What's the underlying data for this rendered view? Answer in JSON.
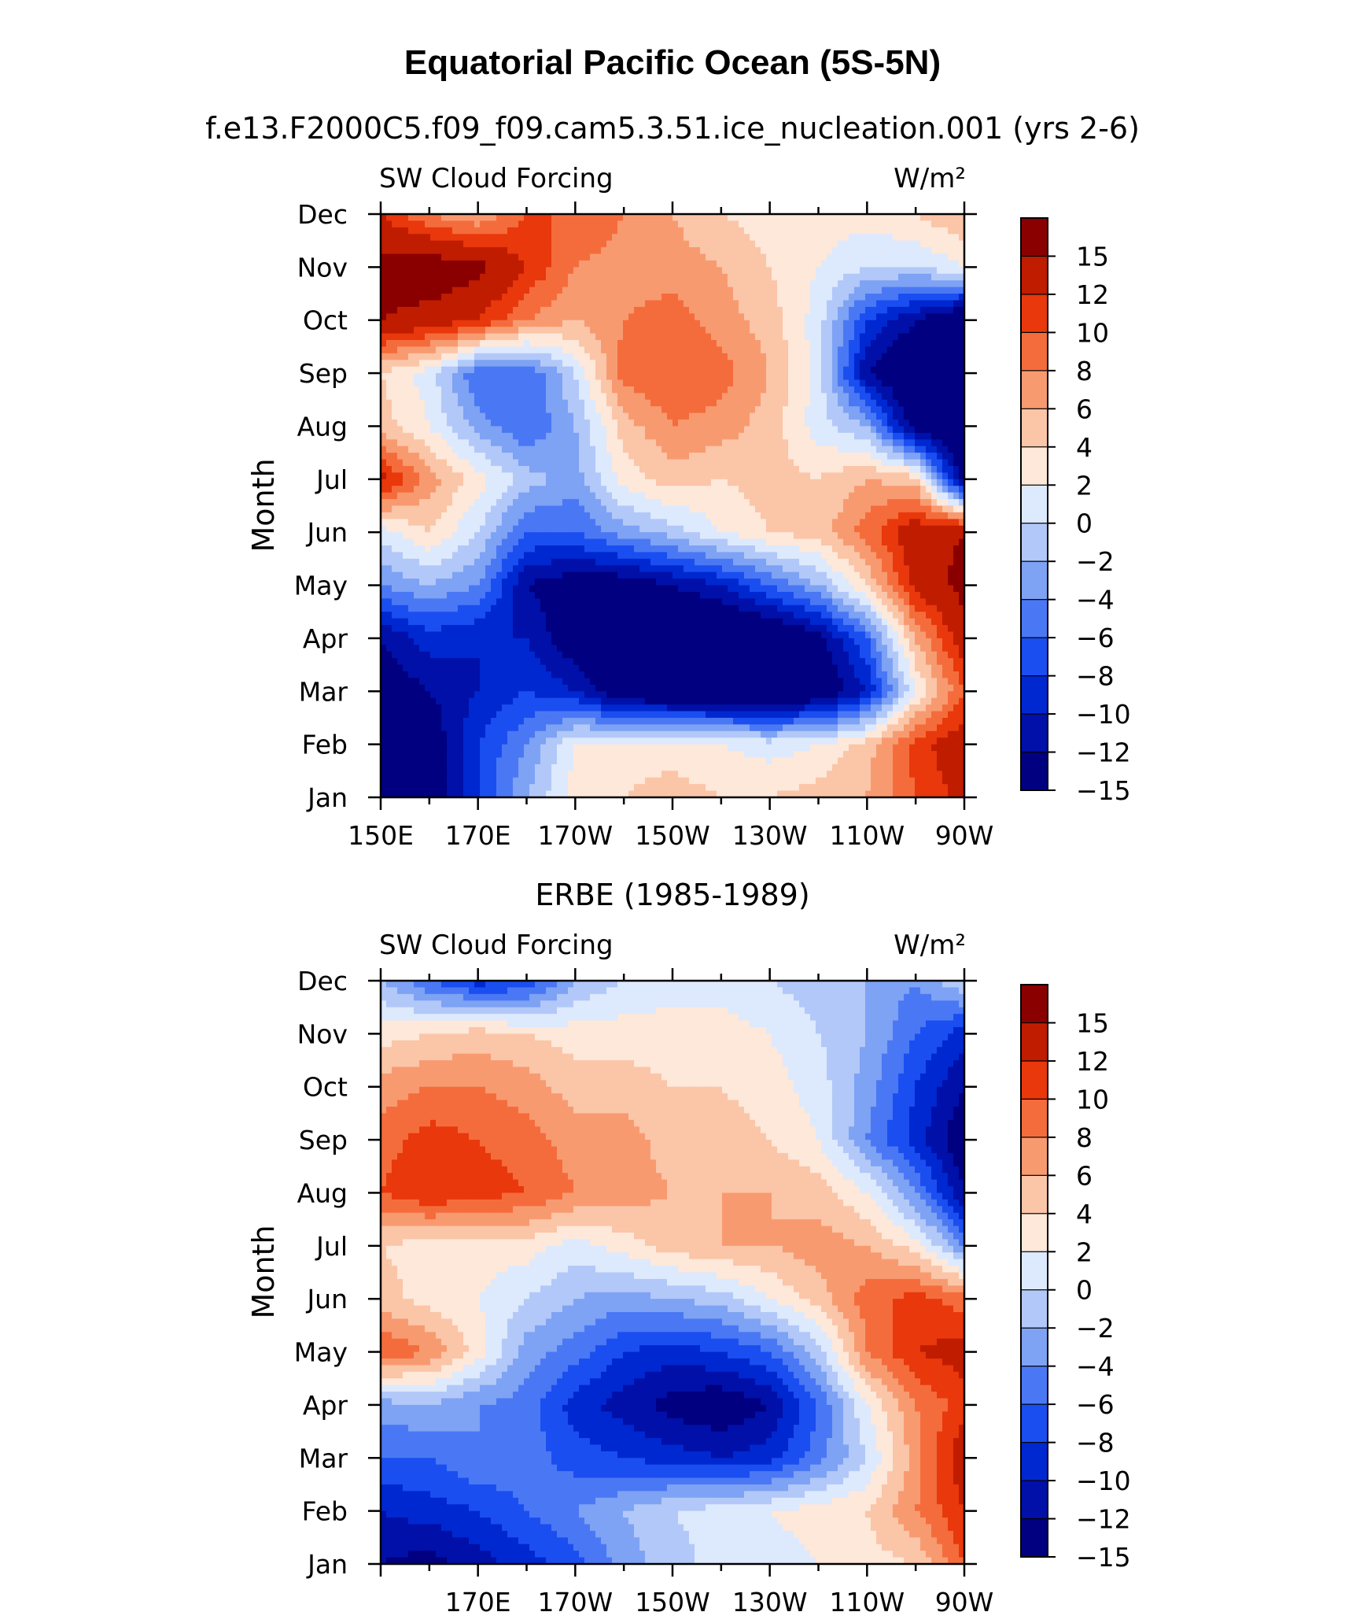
{
  "figure": {
    "title": "Equatorial Pacific Ocean (5S-5N)"
  },
  "chart_data": [
    {
      "type": "heatmap",
      "subtitle": "f.e13.F2000C5.f09_f09.cam5.3.51.ice_nucleation.001 (yrs 2-6)",
      "left_label": "SW Cloud Forcing",
      "right_label": "W/m²",
      "xlabel": "",
      "ylabel": "Month",
      "x_ticks": [
        "150E",
        "170E",
        "170W",
        "150W",
        "130W",
        "110W",
        "90W"
      ],
      "x_range": [
        "150E",
        "90W"
      ],
      "y_ticks": [
        "Jan",
        "Feb",
        "Mar",
        "Apr",
        "May",
        "Jun",
        "Jul",
        "Aug",
        "Sep",
        "Oct",
        "Nov",
        "Dec"
      ],
      "grid": false,
      "colorbar": {
        "levels": [
          -15,
          -12,
          -10,
          -8,
          -6,
          -4,
          -2,
          0,
          2,
          4,
          6,
          8,
          10,
          12,
          15
        ],
        "labels": [
          "15",
          "12",
          "10",
          "8",
          "6",
          "4",
          "2",
          "0",
          "−2",
          "−4",
          "−6",
          "−8",
          "−10",
          "−12",
          "−15"
        ],
        "colors": [
          "#000080",
          "#0010a8",
          "#0028d0",
          "#1a4ef0",
          "#4a78f4",
          "#7ea2f4",
          "#b2c8f8",
          "#dde9fd",
          "#fde8da",
          "#fbc5a8",
          "#f89a70",
          "#f56c3c",
          "#e8380c",
          "#c01c00",
          "#8a0000"
        ]
      },
      "x_lons": [
        150,
        160,
        170,
        180,
        190,
        200,
        210,
        220,
        230,
        240,
        250,
        260,
        270
      ],
      "months_values": [
        [
          -13,
          -14,
          -8,
          -2,
          3,
          4,
          5,
          4,
          4,
          5,
          6,
          10,
          13
        ],
        [
          -15,
          -14,
          -8,
          -4,
          2,
          3,
          3,
          2,
          1,
          2,
          5,
          11,
          14
        ],
        [
          -14,
          -12,
          -10,
          -8,
          -10,
          -15,
          -16,
          -16,
          -16,
          -15,
          -10,
          2,
          10
        ],
        [
          -12,
          -9,
          -10,
          -10,
          -14,
          -17,
          -17,
          -17,
          -16,
          -13,
          -6,
          6,
          14
        ],
        [
          -4,
          -2,
          -4,
          -12,
          -14,
          -14,
          -12,
          -10,
          -6,
          -2,
          4,
          13,
          16
        ],
        [
          1,
          4,
          0,
          -6,
          -6,
          -3,
          -1,
          2,
          4,
          5,
          9,
          14,
          15
        ],
        [
          13,
          7,
          3,
          -1,
          -3,
          3,
          5,
          4,
          5,
          4,
          6,
          5,
          -14
        ],
        [
          5,
          2,
          -3,
          -6,
          -2,
          5,
          8,
          7,
          5,
          1,
          -2,
          -14,
          -16
        ],
        [
          4,
          1,
          -6,
          -6,
          0,
          9,
          10,
          9,
          6,
          1,
          -12,
          -16,
          -16
        ],
        [
          15,
          14,
          12,
          8,
          6,
          8,
          9,
          7,
          5,
          1,
          -8,
          -12,
          -16
        ],
        [
          16,
          17,
          16,
          12,
          8,
          7,
          7,
          6,
          4,
          2,
          0,
          0,
          2
        ],
        [
          12,
          8,
          6,
          10,
          10,
          8,
          6,
          4,
          3,
          3,
          3,
          4,
          6
        ]
      ]
    },
    {
      "type": "heatmap",
      "subtitle": "ERBE (1985-1989)",
      "left_label": "SW Cloud Forcing",
      "right_label": "W/m²",
      "xlabel": "",
      "ylabel": "Month",
      "x_ticks": [
        "170E",
        "170W",
        "150W",
        "130W",
        "110W",
        "90W"
      ],
      "x_range": [
        "150E",
        "90W"
      ],
      "y_ticks": [
        "Jan",
        "Feb",
        "Mar",
        "Apr",
        "May",
        "Jun",
        "Jul",
        "Aug",
        "Sep",
        "Oct",
        "Nov",
        "Dec"
      ],
      "grid": false,
      "colorbar": {
        "levels": [
          -15,
          -12,
          -10,
          -8,
          -6,
          -4,
          -2,
          0,
          2,
          4,
          6,
          8,
          10,
          12,
          15
        ],
        "labels": [
          "15",
          "12",
          "10",
          "8",
          "6",
          "4",
          "2",
          "0",
          "−2",
          "−4",
          "−6",
          "−8",
          "−10",
          "−12",
          "−15"
        ],
        "colors": [
          "#000080",
          "#0010a8",
          "#0028d0",
          "#1a4ef0",
          "#4a78f4",
          "#7ea2f4",
          "#b2c8f8",
          "#dde9fd",
          "#fde8da",
          "#fbc5a8",
          "#f89a70",
          "#f56c3c",
          "#e8380c",
          "#c01c00",
          "#8a0000"
        ]
      },
      "x_lons": [
        150,
        160,
        170,
        180,
        190,
        200,
        210,
        220,
        230,
        240,
        250,
        260,
        270
      ],
      "months_values": [
        [
          -12,
          -13,
          -11,
          -9,
          -7,
          -3,
          -1,
          1,
          1,
          2,
          3,
          4,
          10
        ],
        [
          -10,
          -9,
          -8,
          -6,
          -4,
          -2,
          0,
          1,
          2,
          3,
          4,
          8,
          12
        ],
        [
          -6,
          -6,
          -4,
          -5,
          -7,
          -8,
          -9,
          -10,
          -9,
          -5,
          0,
          7,
          14
        ],
        [
          -3,
          -2,
          -4,
          -5,
          -9,
          -11,
          -13,
          -14,
          -12,
          -6,
          2,
          8,
          11
        ],
        [
          10,
          8,
          3,
          -3,
          -5,
          -8,
          -9,
          -8,
          -6,
          -1,
          8,
          12,
          13
        ],
        [
          5,
          3,
          2,
          0,
          -2,
          -3,
          -2,
          -1,
          2,
          5,
          9,
          11,
          9
        ],
        [
          4,
          3,
          3,
          3,
          1,
          3,
          5,
          6,
          6,
          7,
          6,
          3,
          -4
        ],
        [
          10,
          12,
          11,
          10,
          8,
          7,
          6,
          6,
          6,
          5,
          2,
          -4,
          -12
        ],
        [
          9,
          11,
          10,
          9,
          7,
          7,
          5,
          5,
          4,
          2,
          -4,
          -9,
          -14
        ],
        [
          7,
          8,
          8,
          7,
          5,
          5,
          4,
          4,
          3,
          1,
          -3,
          -8,
          -12
        ],
        [
          3,
          4,
          5,
          4,
          3,
          3,
          3,
          3,
          2,
          0,
          -2,
          -6,
          -9
        ],
        [
          -2,
          -6,
          -9,
          -8,
          -2,
          0,
          1,
          1,
          0,
          -1,
          -2,
          -4,
          0
        ]
      ]
    }
  ]
}
